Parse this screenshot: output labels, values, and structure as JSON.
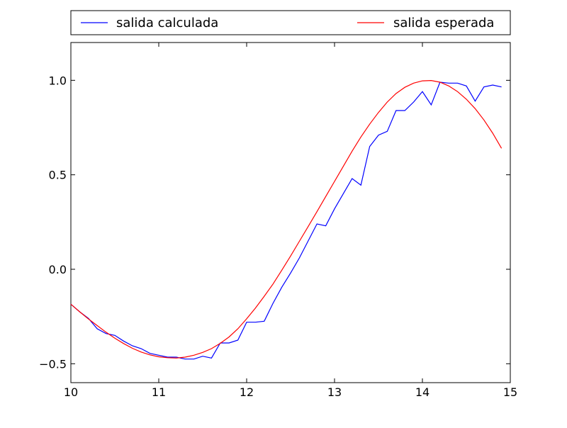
{
  "chart_data": {
    "type": "line",
    "title": "",
    "xlabel": "",
    "ylabel": "",
    "xlim": [
      10,
      15
    ],
    "ylim": [
      -0.6,
      1.2
    ],
    "grid": false,
    "legend_position": "top",
    "x_ticks": [
      10,
      11,
      12,
      13,
      14,
      15
    ],
    "x_tick_labels": [
      "10",
      "11",
      "12",
      "13",
      "14",
      "15"
    ],
    "y_ticks": [
      -0.5,
      0.0,
      0.5,
      1.0
    ],
    "y_tick_labels": [
      "−0.5",
      "0.0",
      "0.5",
      "1.0"
    ],
    "series": [
      {
        "name": "salida calculada",
        "color": "#0000ff",
        "x": [
          10.0,
          10.1,
          10.2,
          10.3,
          10.4,
          10.5,
          10.6,
          10.7,
          10.8,
          10.9,
          11.0,
          11.1,
          11.2,
          11.3,
          11.4,
          11.5,
          11.6,
          11.7,
          11.8,
          11.9,
          12.0,
          12.1,
          12.2,
          12.3,
          12.4,
          12.5,
          12.6,
          12.7,
          12.8,
          12.9,
          13.0,
          13.1,
          13.2,
          13.3,
          13.4,
          13.5,
          13.6,
          13.7,
          13.8,
          13.9,
          14.0,
          14.1,
          14.2,
          14.3,
          14.4,
          14.5,
          14.6,
          14.7,
          14.8,
          14.9
        ],
        "values": [
          -0.185,
          -0.225,
          -0.26,
          -0.315,
          -0.34,
          -0.35,
          -0.38,
          -0.405,
          -0.42,
          -0.445,
          -0.455,
          -0.465,
          -0.465,
          -0.475,
          -0.475,
          -0.46,
          -0.47,
          -0.39,
          -0.39,
          -0.375,
          -0.28,
          -0.28,
          -0.275,
          -0.18,
          -0.095,
          -0.02,
          0.06,
          0.15,
          0.24,
          0.23,
          0.32,
          0.4,
          0.48,
          0.445,
          0.65,
          0.71,
          0.73,
          0.84,
          0.84,
          0.885,
          0.94,
          0.87,
          0.99,
          0.985,
          0.985,
          0.97,
          0.89,
          0.965,
          0.975,
          0.965
        ]
      },
      {
        "name": "salida esperada",
        "color": "#ff0000",
        "x": [
          10.0,
          10.1,
          10.2,
          10.3,
          10.4,
          10.5,
          10.6,
          10.7,
          10.8,
          10.9,
          11.0,
          11.1,
          11.2,
          11.3,
          11.4,
          11.5,
          11.6,
          11.7,
          11.8,
          11.9,
          12.0,
          12.1,
          12.2,
          12.3,
          12.4,
          12.5,
          12.6,
          12.7,
          12.8,
          12.9,
          13.0,
          13.1,
          13.2,
          13.3,
          13.4,
          13.5,
          13.6,
          13.7,
          13.8,
          13.9,
          14.0,
          14.1,
          14.2,
          14.3,
          14.4,
          14.5,
          14.6,
          14.7,
          14.8,
          14.9
        ],
        "values": [
          -0.185,
          -0.225,
          -0.263,
          -0.298,
          -0.333,
          -0.365,
          -0.393,
          -0.418,
          -0.438,
          -0.453,
          -0.463,
          -0.468,
          -0.47,
          -0.465,
          -0.455,
          -0.44,
          -0.42,
          -0.392,
          -0.358,
          -0.315,
          -0.262,
          -0.205,
          -0.143,
          -0.078,
          -0.005,
          0.07,
          0.148,
          0.226,
          0.305,
          0.385,
          0.465,
          0.545,
          0.625,
          0.7,
          0.768,
          0.83,
          0.885,
          0.93,
          0.963,
          0.985,
          0.997,
          0.999,
          0.99,
          0.97,
          0.94,
          0.9,
          0.85,
          0.79,
          0.72,
          0.64
        ]
      }
    ]
  }
}
